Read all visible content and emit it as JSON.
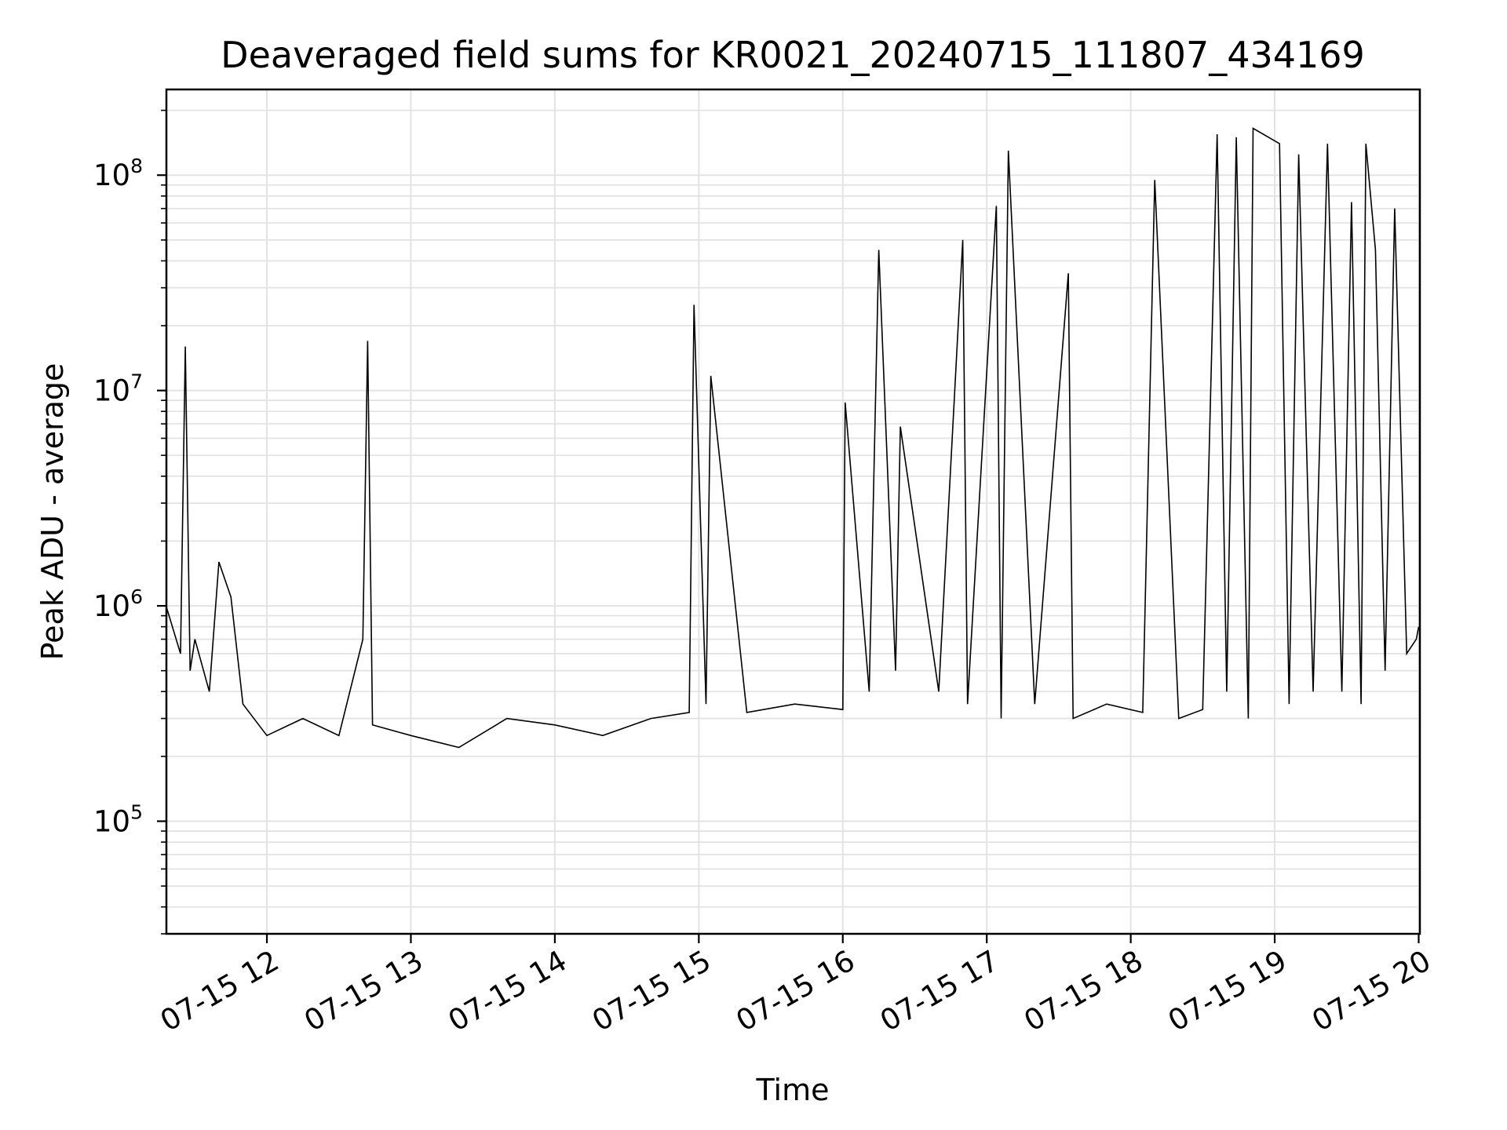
{
  "chart_data": {
    "type": "line",
    "title": "Deaveraged field sums for KR0021_20240715_111807_434169",
    "xlabel": "Time",
    "ylabel": "Peak ADU - average",
    "yscale": "log",
    "xlim": [
      "2024-07-15T11:18:07",
      "2024-07-15T20:00:30"
    ],
    "ylim": [
      30000,
      250000000
    ],
    "grid": true,
    "color": "#000000",
    "x_ticks": [
      {
        "time": "2024-07-15T12:00",
        "label": "07-15 12"
      },
      {
        "time": "2024-07-15T13:00",
        "label": "07-15 13"
      },
      {
        "time": "2024-07-15T14:00",
        "label": "07-15 14"
      },
      {
        "time": "2024-07-15T15:00",
        "label": "07-15 15"
      },
      {
        "time": "2024-07-15T16:00",
        "label": "07-15 16"
      },
      {
        "time": "2024-07-15T17:00",
        "label": "07-15 17"
      },
      {
        "time": "2024-07-15T18:00",
        "label": "07-15 18"
      },
      {
        "time": "2024-07-15T19:00",
        "label": "07-15 19"
      },
      {
        "time": "2024-07-15T20:00",
        "label": "07-15 20"
      }
    ],
    "y_ticks": [
      {
        "value": 100000,
        "base": "10",
        "exp": "5"
      },
      {
        "value": 1000000,
        "base": "10",
        "exp": "6"
      },
      {
        "value": 10000000,
        "base": "10",
        "exp": "7"
      },
      {
        "value": 100000000,
        "base": "10",
        "exp": "8"
      }
    ],
    "series": [
      {
        "x": [
          "2024-07-15T11:18",
          "2024-07-15T11:24",
          "2024-07-15T11:26",
          "2024-07-15T11:28",
          "2024-07-15T11:30",
          "2024-07-15T11:36",
          "2024-07-15T11:40",
          "2024-07-15T11:45",
          "2024-07-15T11:50",
          "2024-07-15T12:00",
          "2024-07-15T12:15",
          "2024-07-15T12:30",
          "2024-07-15T12:40",
          "2024-07-15T12:42",
          "2024-07-15T12:44",
          "2024-07-15T13:00",
          "2024-07-15T13:20",
          "2024-07-15T13:40",
          "2024-07-15T14:00",
          "2024-07-15T14:20",
          "2024-07-15T14:40",
          "2024-07-15T14:56",
          "2024-07-15T14:58",
          "2024-07-15T15:03",
          "2024-07-15T15:05",
          "2024-07-15T15:20",
          "2024-07-15T15:40",
          "2024-07-15T16:00",
          "2024-07-15T16:01",
          "2024-07-15T16:11",
          "2024-07-15T16:15",
          "2024-07-15T16:22",
          "2024-07-15T16:24",
          "2024-07-15T16:40",
          "2024-07-15T16:50",
          "2024-07-15T16:52",
          "2024-07-15T17:04",
          "2024-07-15T17:06",
          "2024-07-15T17:09",
          "2024-07-15T17:20",
          "2024-07-15T17:34",
          "2024-07-15T17:36",
          "2024-07-15T17:50",
          "2024-07-15T18:05",
          "2024-07-15T18:10",
          "2024-07-15T18:20",
          "2024-07-15T18:30",
          "2024-07-15T18:36",
          "2024-07-15T18:40",
          "2024-07-15T18:44",
          "2024-07-15T18:49",
          "2024-07-15T18:51",
          "2024-07-15T19:02",
          "2024-07-15T19:06",
          "2024-07-15T19:10",
          "2024-07-15T19:16",
          "2024-07-15T19:22",
          "2024-07-15T19:28",
          "2024-07-15T19:32",
          "2024-07-15T19:36",
          "2024-07-15T19:38",
          "2024-07-15T19:42",
          "2024-07-15T19:46",
          "2024-07-15T19:50",
          "2024-07-15T19:55",
          "2024-07-15T19:59",
          "2024-07-15T20:00"
        ],
        "y": [
          1000000,
          600000,
          16000000,
          500000,
          700000,
          400000,
          1600000,
          1100000,
          350000,
          250000,
          300000,
          250000,
          700000,
          17000000,
          280000,
          250000,
          220000,
          300000,
          280000,
          250000,
          300000,
          320000,
          25000000,
          350000,
          11700000,
          320000,
          350000,
          330000,
          8800000,
          400000,
          45000000,
          500000,
          6800000,
          400000,
          50000000,
          350000,
          72000000,
          300000,
          130000000,
          350000,
          35000000,
          300000,
          350000,
          320000,
          95000000,
          300000,
          330000,
          155000000,
          400000,
          150000000,
          300000,
          165000000,
          140000000,
          350000,
          125000000,
          400000,
          140000000,
          400000,
          75000000,
          350000,
          140000000,
          45000000,
          500000,
          70000000,
          600000,
          700000,
          800000
        ]
      }
    ]
  }
}
